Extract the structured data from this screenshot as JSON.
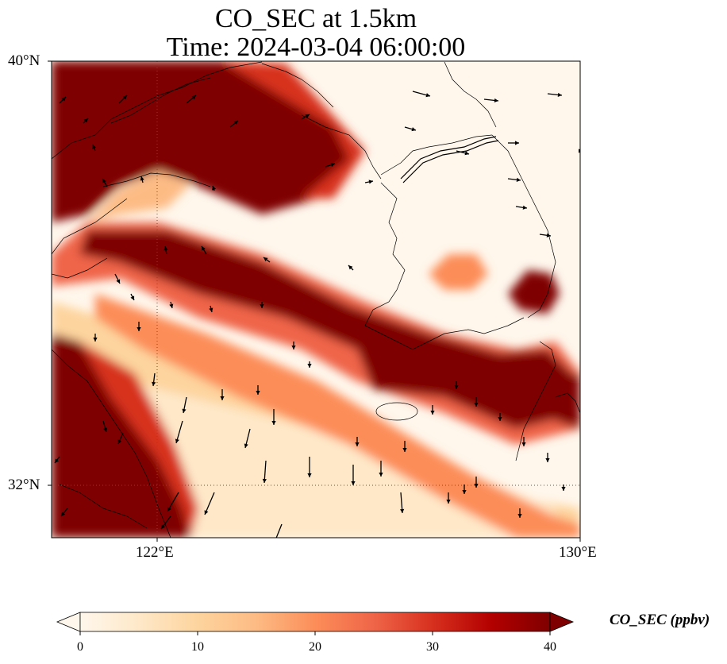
{
  "title": {
    "line1": "CO_SEC at 1.5km",
    "line2": "Time: 2024-03-04 06:00:00"
  },
  "axes": {
    "lat_labels": [
      {
        "label": "40°N",
        "value": 40
      },
      {
        "label": "32°N",
        "value": 32
      }
    ],
    "lon_labels": [
      {
        "label": "122°E",
        "value": 122
      },
      {
        "label": "130°E",
        "value": 130
      }
    ],
    "extent": {
      "lon_min": 120,
      "lon_max": 130,
      "lat_min": 31,
      "lat_max": 40
    },
    "gridlines": "dotted"
  },
  "colorbar": {
    "label": "CO_SEC (ppbv)",
    "ticks": [
      "0",
      "10",
      "20",
      "30",
      "40"
    ],
    "min": 0,
    "max": 40,
    "extend": "both",
    "colormap": "OrRd",
    "stops": [
      "#fff7ec",
      "#fee8c8",
      "#fdd49e",
      "#fdbb84",
      "#fc8d59",
      "#ef6548",
      "#d7301f",
      "#b30000",
      "#7f0000"
    ]
  },
  "colors": {
    "background": "#ffffff",
    "grid": "#555555",
    "coast": "#000000"
  }
}
